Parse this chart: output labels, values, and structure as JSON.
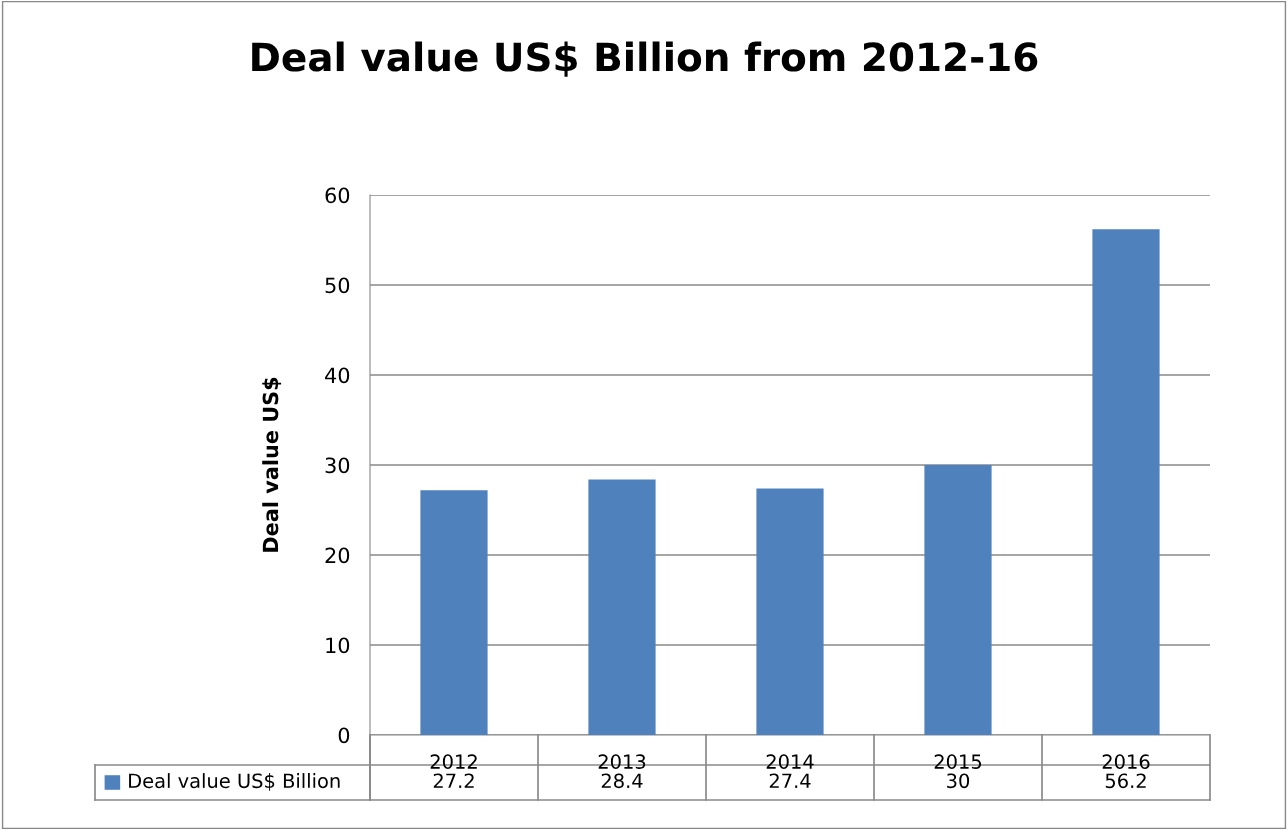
{
  "chart_data": {
    "type": "bar",
    "title": "Deal value US$ Billion from 2012-16",
    "ylabel": "Deal value US$",
    "categories": [
      "2012",
      "2013",
      "2014",
      "2015",
      "2016"
    ],
    "series": [
      {
        "name": "Deal value US$ Billion",
        "color": "#4f81bd",
        "values": [
          27.2,
          28.4,
          27.4,
          30,
          56.2
        ]
      }
    ],
    "ylim": [
      0,
      60
    ],
    "yticks": [
      0,
      10,
      20,
      30,
      40,
      50,
      60
    ],
    "grid": "y",
    "legend": "bottom",
    "data_labels": true
  }
}
